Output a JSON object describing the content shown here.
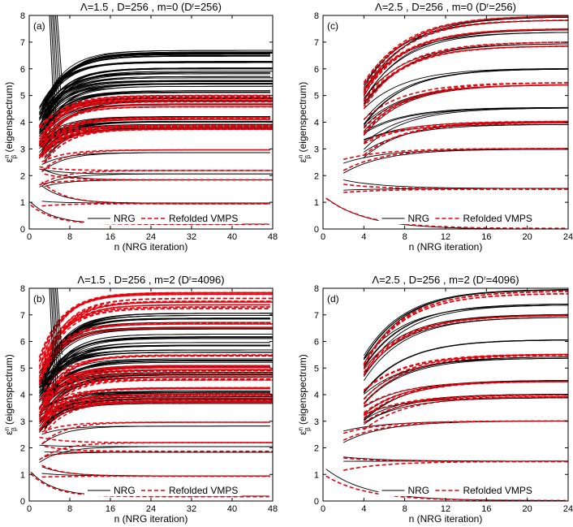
{
  "figure": {
    "ylabel_main": "ε",
    "ylabel_sup": "n",
    "ylabel_sub": "β",
    "ylabel_tail": " (eigenspectrum)",
    "xlabel": "n (NRG iteration)"
  },
  "colors": {
    "nrg": "#000000",
    "vmps": "#e8000b"
  },
  "chart_data": [
    {
      "type": "line",
      "panel_label": "(a)",
      "title": "Λ=1.5 , D=256 , m=0 (D",
      "title_sup": "r",
      "title_tail": "=256)",
      "xlim": [
        0,
        48
      ],
      "ylim": [
        0,
        8
      ],
      "xticks": [
        "0",
        "8",
        "16",
        "24",
        "32",
        "40",
        "48"
      ],
      "yticks": [
        "0",
        "1",
        "2",
        "3",
        "4",
        "5",
        "6",
        "7",
        "8"
      ],
      "n_start": 2,
      "n_gap": 4.5,
      "legend": {
        "position": "bottom",
        "entries": [
          "NRG",
          "Refolded VMPS"
        ]
      },
      "series": [
        {
          "name": "NRG",
          "levels": [
            0.18,
            0.95,
            1.85,
            2.05,
            2.85,
            3.8,
            3.95,
            4.15,
            4.7,
            4.9,
            5.1,
            5.4,
            5.6,
            5.8,
            6.0,
            6.3,
            6.5,
            6.65
          ]
        },
        {
          "name": "Refolded VMPS",
          "levels": [
            0.18,
            0.95,
            1.85,
            2.2,
            2.95,
            3.7,
            3.85,
            4.1,
            4.6,
            4.8,
            4.95
          ]
        }
      ]
    },
    {
      "type": "line",
      "panel_label": "(c)",
      "title": "Λ=2.5 , D=256 , m=0 (D",
      "title_sup": "r",
      "title_tail": "=256)",
      "xlim": [
        0,
        24
      ],
      "ylim": [
        0,
        8
      ],
      "xticks": [
        "0",
        "4",
        "8",
        "12",
        "16",
        "20",
        "24"
      ],
      "yticks": [
        "0",
        "1",
        "2",
        "3",
        "4",
        "5",
        "6",
        "7",
        "8"
      ],
      "n_start": 2,
      "n_gap": 4.0,
      "legend": {
        "position": "bottom",
        "entries": [
          "NRG",
          "Refolded VMPS"
        ]
      },
      "series": [
        {
          "name": "NRG",
          "levels": [
            0.0,
            1.5,
            3.0,
            3.95,
            4.5,
            5.45,
            6.0,
            6.95,
            7.45,
            7.9
          ]
        },
        {
          "name": "Refolded VMPS",
          "levels": [
            0.0,
            1.5,
            3.0,
            3.95,
            5.45,
            6.95,
            7.45,
            7.9
          ]
        }
      ]
    },
    {
      "type": "line",
      "panel_label": "(b)",
      "title": "Λ=1.5 , D=256 , m=2 (D",
      "title_sup": "r",
      "title_tail": "=4096)",
      "xlim": [
        0,
        48
      ],
      "ylim": [
        0,
        8
      ],
      "xticks": [
        "0",
        "8",
        "16",
        "24",
        "32",
        "40",
        "48"
      ],
      "yticks": [
        "0",
        "1",
        "2",
        "3",
        "4",
        "5",
        "6",
        "7",
        "8"
      ],
      "n_start": 2,
      "n_gap": 4.5,
      "legend": {
        "position": "bottom",
        "entries": [
          "NRG",
          "Refolded VMPS"
        ]
      },
      "series": [
        {
          "name": "NRG",
          "levels": [
            0.18,
            0.95,
            1.85,
            2.05,
            2.8,
            3.75,
            3.9,
            4.1,
            4.7,
            4.85,
            5.05,
            5.3,
            5.6,
            5.9,
            6.2,
            6.5,
            6.8,
            7.0
          ]
        },
        {
          "name": "Refolded VMPS",
          "levels": [
            0.18,
            0.95,
            1.85,
            2.2,
            2.95,
            3.75,
            3.95,
            4.2,
            4.6,
            4.85,
            5.05,
            5.5,
            6.6,
            7.3,
            7.55,
            7.8
          ]
        }
      ]
    },
    {
      "type": "line",
      "panel_label": "(d)",
      "title": "Λ=2.5 , D=256 , m=2 (D",
      "title_sup": "r",
      "title_tail": "=4096)",
      "xlim": [
        0,
        24
      ],
      "ylim": [
        0,
        8
      ],
      "xticks": [
        "0",
        "4",
        "8",
        "12",
        "16",
        "20",
        "24"
      ],
      "yticks": [
        "0",
        "1",
        "2",
        "3",
        "4",
        "5",
        "6",
        "7",
        "8"
      ],
      "n_start": 2,
      "n_gap": 4.0,
      "legend": {
        "position": "bottom",
        "entries": [
          "NRG",
          "Refolded VMPS"
        ]
      },
      "series": [
        {
          "name": "NRG",
          "levels": [
            0.0,
            1.5,
            3.0,
            3.95,
            4.5,
            5.45,
            6.0,
            6.95,
            7.45,
            7.9
          ]
        },
        {
          "name": "Refolded VMPS",
          "levels": [
            0.0,
            1.5,
            3.0,
            3.95,
            4.55,
            5.45,
            6.95,
            7.9
          ]
        }
      ]
    }
  ]
}
